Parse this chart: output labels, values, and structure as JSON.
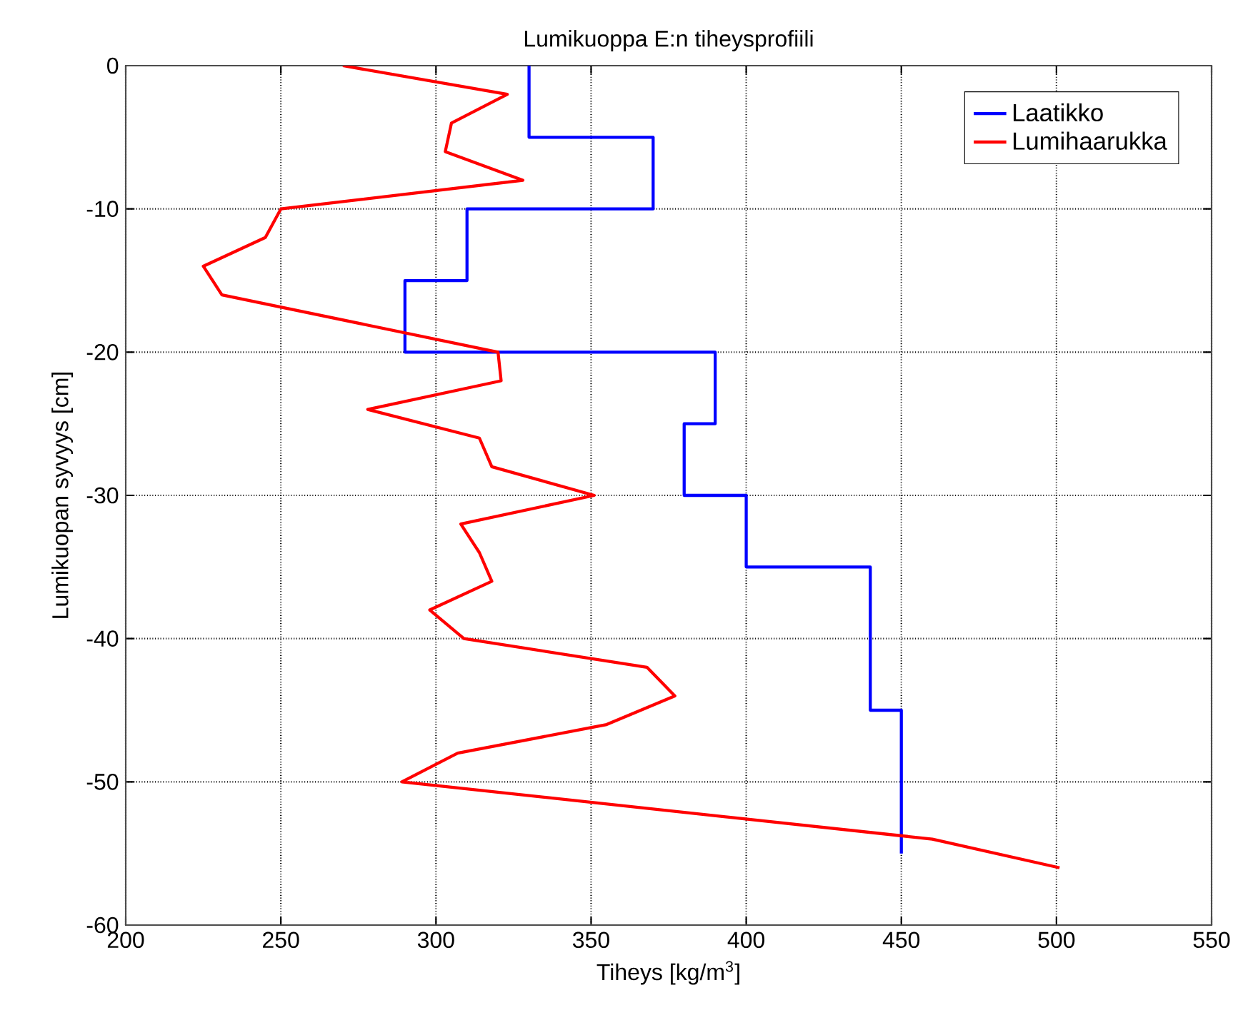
{
  "chart_data": {
    "type": "line",
    "title": "Lumikuoppa E:n tiheysprofiili",
    "xlabel": "Tiheys [kg/m$^{3}$]",
    "ylabel": "Lumikuopan syvyys [cm]",
    "xlim": [
      200,
      550
    ],
    "ylim": [
      -60,
      0
    ],
    "xticks": [
      200,
      250,
      300,
      350,
      400,
      450,
      500,
      550
    ],
    "yticks": [
      -60,
      -50,
      -40,
      -30,
      -20,
      -10,
      0
    ],
    "grid": true,
    "legend": "top right",
    "marker": "none",
    "line_style": "solid",
    "series": [
      {
        "name": "Laatikko",
        "color": "#0000ff",
        "x": [
          330,
          330,
          370,
          370,
          310,
          310,
          290,
          290,
          390,
          390,
          380,
          380,
          400,
          400,
          440,
          440,
          450,
          450
        ],
        "values": [
          0,
          -5,
          -5,
          -10,
          -10,
          -15,
          -15,
          -20,
          -20,
          -25,
          -25,
          -30,
          -30,
          -35,
          -35,
          -45,
          -45,
          -55
        ]
      },
      {
        "name": "Lumihaarukka",
        "color": "#ff0000",
        "x": [
          270,
          323,
          305,
          303,
          328,
          250,
          245,
          225,
          231,
          320,
          321,
          278,
          314,
          318,
          351,
          308,
          314,
          318,
          298,
          309,
          368,
          377,
          355,
          307,
          289,
          460,
          501
        ],
        "values": [
          0,
          -2,
          -4,
          -6,
          -8,
          -10,
          -12,
          -14,
          -16,
          -20,
          -22,
          -24,
          -26,
          -28,
          -30,
          -32,
          -34,
          -36,
          -38,
          -40,
          -42,
          -44,
          -46,
          -48,
          -50,
          -54,
          -56
        ]
      }
    ]
  }
}
